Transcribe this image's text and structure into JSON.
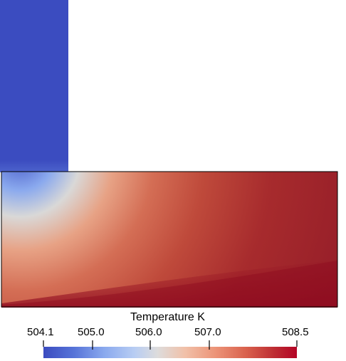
{
  "colorbar": {
    "title": "Temperature K",
    "ticks": [
      "504.1",
      "505.0",
      "506.0",
      "507.0",
      "508.5"
    ],
    "tick_values": [
      504.1,
      505.0,
      506.0,
      507.0,
      508.5
    ],
    "range": [
      504.1,
      508.5
    ]
  },
  "colors": {
    "cold": "#3b4cc0",
    "neutral": "#dddddd",
    "hot": "#b40426",
    "max": "#8f0a20",
    "outline": "#000000",
    "background": "#ffffff"
  }
}
